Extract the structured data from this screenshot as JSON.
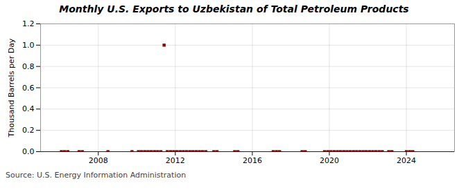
{
  "chart_data": {
    "type": "scatter",
    "title": "Monthly U.S. Exports to Uzbekistan of Total Petroleum Products",
    "ylabel": "Thousand Barrels per Day",
    "source": "Source: U.S. Energy Information Administration",
    "color": "#990000",
    "marker": "square",
    "grid": true,
    "xlim": [
      2005.0,
      2026.5
    ],
    "xticks": [
      2008,
      2012,
      2016,
      2020,
      2024
    ],
    "ylim": [
      0.0,
      1.2
    ],
    "yticks": [
      {
        "value": 0.0,
        "label": "0.0"
      },
      {
        "value": 0.2,
        "label": "0.2"
      },
      {
        "value": 0.4,
        "label": "0.4"
      },
      {
        "value": 0.6,
        "label": "0.6"
      },
      {
        "value": 0.8,
        "label": "0.8"
      },
      {
        "value": 1.0,
        "label": "1.0"
      },
      {
        "value": 1.2,
        "label": "1.2"
      }
    ],
    "x": [
      2006.083,
      2006.25,
      2006.417,
      2007.0,
      2007.167,
      2008.5,
      2009.75,
      2010.083,
      2010.25,
      2010.417,
      2010.583,
      2010.75,
      2010.917,
      2011.083,
      2011.25,
      2011.417,
      2011.583,
      2011.75,
      2011.917,
      2012.083,
      2012.25,
      2012.417,
      2012.583,
      2012.75,
      2012.917,
      2013.083,
      2013.25,
      2013.417,
      2013.583,
      2014.0,
      2014.167,
      2015.083,
      2015.25,
      2017.083,
      2017.25,
      2017.417,
      2018.583,
      2018.75,
      2019.75,
      2019.917,
      2020.083,
      2020.25,
      2020.417,
      2020.583,
      2020.75,
      2020.917,
      2021.083,
      2021.25,
      2021.417,
      2021.583,
      2021.75,
      2021.917,
      2022.083,
      2022.25,
      2022.417,
      2022.583,
      2022.75,
      2023.083,
      2023.25,
      2024.0,
      2024.167,
      2024.333
    ],
    "values": [
      0.0,
      0.0,
      0.0,
      0.0,
      0.0,
      0.0,
      0.0,
      0.0,
      0.0,
      0.0,
      0.0,
      0.0,
      0.0,
      0.0,
      0.0,
      1.0,
      0.0,
      0.0,
      0.0,
      0.0,
      0.0,
      0.0,
      0.0,
      0.0,
      0.0,
      0.0,
      0.0,
      0.0,
      0.0,
      0.0,
      0.0,
      0.0,
      0.0,
      0.0,
      0.0,
      0.0,
      0.0,
      0.0,
      0.0,
      0.0,
      0.0,
      0.0,
      0.0,
      0.0,
      0.0,
      0.0,
      0.0,
      0.0,
      0.0,
      0.0,
      0.0,
      0.0,
      0.0,
      0.0,
      0.0,
      0.0,
      0.0,
      0.0,
      0.0,
      0.0,
      0.0,
      0.0
    ]
  }
}
